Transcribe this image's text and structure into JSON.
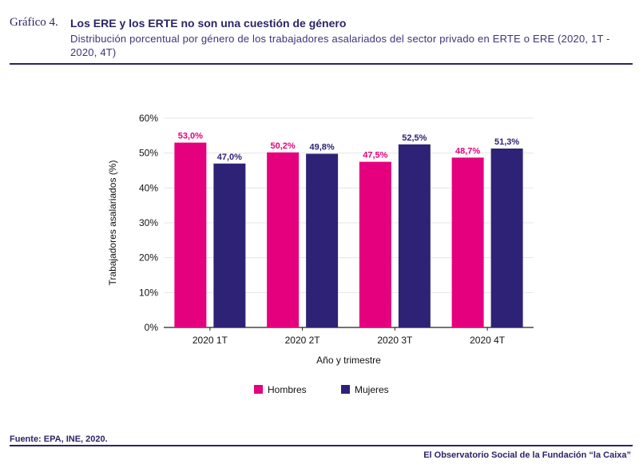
{
  "header": {
    "label": "Gráfico 4.",
    "title": "Los ERE y los ERTE no son una cuestión de género",
    "subtitle": "Distribución porcentual por género de los trabajadores asalariados del sector privado en ERTE o ERE (2020, 1T - 2020, 4T)"
  },
  "colors": {
    "hombres": "#e5007e",
    "mujeres": "#2e2277",
    "text": "#2b2466"
  },
  "chart_data": {
    "type": "bar",
    "categories": [
      "2020 1T",
      "2020 2T",
      "2020 3T",
      "2020 4T"
    ],
    "series": [
      {
        "name": "Hombres",
        "values": [
          53.0,
          50.2,
          47.5,
          48.7
        ],
        "labels": [
          "53,0%",
          "50,2%",
          "47,5%",
          "48,7%"
        ]
      },
      {
        "name": "Mujeres",
        "values": [
          47.0,
          49.8,
          52.5,
          51.3
        ],
        "labels": [
          "47,0%",
          "49,8%",
          "52,5%",
          "51,3%"
        ]
      }
    ],
    "xlabel": "Año y trimestre",
    "ylabel": "Trabajadores asalariados (%)",
    "ylim": [
      0,
      60
    ],
    "yticks": [
      0,
      10,
      20,
      30,
      40,
      50,
      60
    ],
    "ytick_labels": [
      "0%",
      "10%",
      "20%",
      "30%",
      "40%",
      "50%",
      "60%"
    ],
    "legend_position": "bottom",
    "grid": true
  },
  "footer": {
    "source": "Fuente:  EPA, INE, 2020.",
    "credit": "El Observatorio Social de la Fundación “la Caixa”"
  }
}
